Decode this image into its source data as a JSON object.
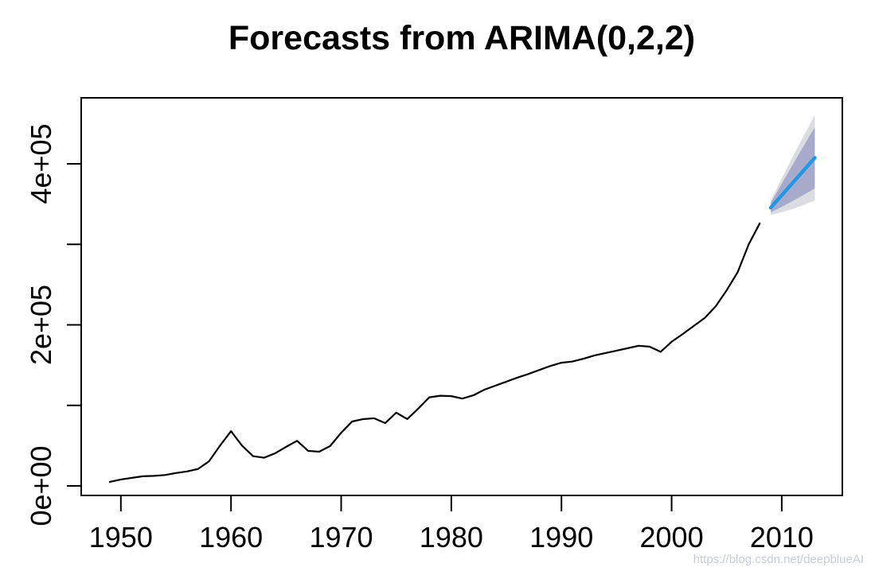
{
  "title": "Forecasts from ARIMA(0,2,2)",
  "watermark": "https://blog.csdn.net/deepblueAI",
  "colors": {
    "observed_line": "#000000",
    "forecast_line": "#2297E6",
    "band_80": "#A7AACA",
    "band_95": "#DBDBE2",
    "axis": "#000000",
    "watermark_text": "#C7CCD7",
    "background": "#FFFFFF"
  },
  "chart_data": {
    "type": "line",
    "title": "Forecasts from ARIMA(0,2,2)",
    "xlabel": "",
    "ylabel": "",
    "grid": false,
    "legend": "none",
    "xlim": [
      1946.4,
      2015.5
    ],
    "ylim": [
      -11850,
      482000
    ],
    "x_ticks": {
      "values": [
        1950,
        1960,
        1970,
        1980,
        1990,
        2000,
        2010
      ],
      "labels": [
        "1950",
        "1960",
        "1970",
        "1980",
        "1990",
        "2000",
        "2010"
      ]
    },
    "y_ticks": {
      "values": [
        0,
        100000,
        200000,
        300000,
        400000
      ],
      "labels": [
        "0e+00",
        "",
        "2e+05",
        "",
        "4e+05"
      ]
    },
    "series": [
      {
        "name": "observed",
        "color": "#000000",
        "x": [
          1949,
          1950,
          1951,
          1952,
          1953,
          1954,
          1955,
          1956,
          1957,
          1958,
          1959,
          1960,
          1961,
          1962,
          1963,
          1964,
          1965,
          1966,
          1967,
          1968,
          1969,
          1970,
          1971,
          1972,
          1973,
          1974,
          1975,
          1976,
          1977,
          1978,
          1979,
          1980,
          1981,
          1982,
          1983,
          1984,
          1985,
          1986,
          1987,
          1988,
          1989,
          1990,
          1991,
          1992,
          1993,
          1994,
          1995,
          1996,
          1997,
          1998,
          1999,
          2000,
          2001,
          2002,
          2003,
          2004,
          2005,
          2006,
          2007,
          2008
        ],
        "y": [
          5000,
          8000,
          10000,
          12000,
          12500,
          13500,
          16000,
          18000,
          21000,
          30500,
          50000,
          68000,
          50000,
          37000,
          35000,
          40500,
          48500,
          56000,
          43500,
          42500,
          49500,
          66000,
          80000,
          83000,
          84000,
          78000,
          91000,
          83000,
          96000,
          110000,
          112000,
          111500,
          108500,
          112500,
          119500,
          124500,
          129500,
          134500,
          139000,
          144000,
          149000,
          153000,
          154500,
          158000,
          162000,
          165000,
          168000,
          171000,
          174000,
          173000,
          166500,
          179000,
          188500,
          198500,
          208500,
          223000,
          243000,
          265500,
          300000,
          326000
        ]
      },
      {
        "name": "forecast_mean",
        "color": "#2297E6",
        "x": [
          2009,
          2010,
          2011,
          2012,
          2013
        ],
        "y": [
          345500,
          361000,
          376500,
          392000,
          407500
        ]
      }
    ],
    "intervals": [
      {
        "level": 95,
        "color": "#DBDBE2",
        "x": [
          2009,
          2010,
          2011,
          2012,
          2013
        ],
        "lower": [
          336500,
          340000,
          344000,
          349000,
          354500
        ],
        "upper": [
          354500,
          382000,
          409000,
          435000,
          460500
        ]
      },
      {
        "level": 80,
        "color": "#A7AACA",
        "x": [
          2009,
          2010,
          2011,
          2012,
          2013
        ],
        "lower": [
          339500,
          346500,
          354000,
          361500,
          369500
        ],
        "upper": [
          351500,
          375500,
          399000,
          422500,
          445500
        ]
      }
    ]
  }
}
